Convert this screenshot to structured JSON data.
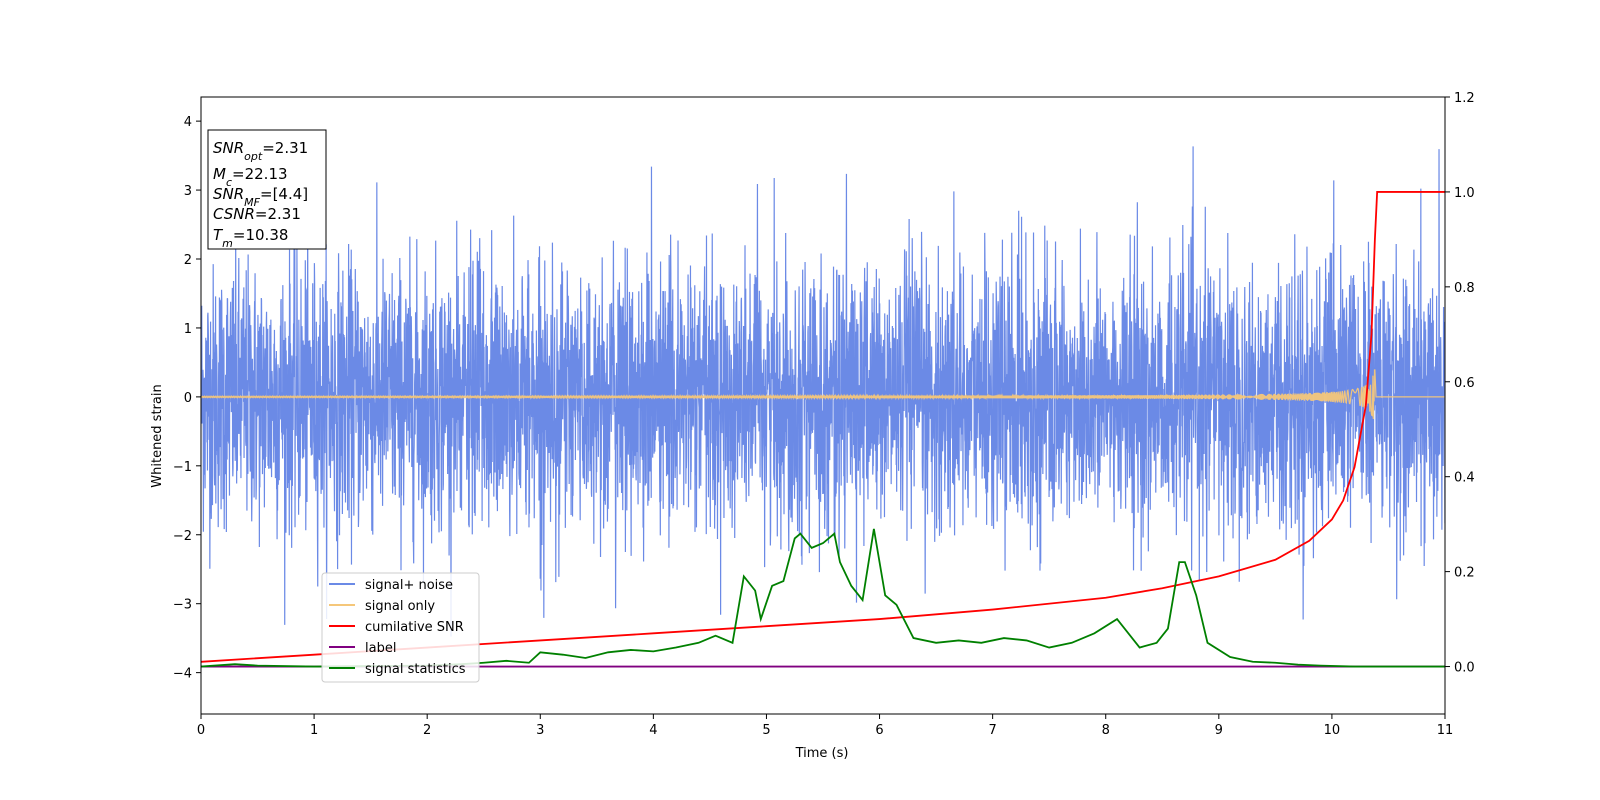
{
  "chart_data": {
    "type": "line",
    "xlabel": "Time (s)",
    "ylabel": "Whitened strain",
    "xlim": [
      0,
      11
    ],
    "ylim_left": [
      -4.6,
      4.35
    ],
    "ylim_right": [
      -0.1,
      1.2
    ],
    "x_ticks": [
      "0",
      "1",
      "2",
      "3",
      "4",
      "5",
      "6",
      "7",
      "8",
      "9",
      "10",
      "11"
    ],
    "y_ticks_left": [
      "−4",
      "−3",
      "−2",
      "−1",
      "0",
      "1",
      "2",
      "3",
      "4"
    ],
    "y_ticks_right": [
      "0.0",
      "0.2",
      "0.4",
      "0.6",
      "0.8",
      "1.0",
      "1.2"
    ],
    "grid": false,
    "legend_position": "bottom-left",
    "annotation": {
      "snr_opt": "=2.31",
      "mc": "=22.13",
      "snr_mf": "=[4.4]",
      "csnr": "=2.31",
      "tm": "=10.38"
    },
    "series": [
      {
        "name": "signal+ noise",
        "axis": "left",
        "color": "#6b8ae6",
        "description_stats": {
          "mean": 0,
          "std": 1.0,
          "min": -3.6,
          "max": 3.95
        }
      },
      {
        "name": "signal only",
        "axis": "left",
        "color": "#f5c77a",
        "merger_time": 10.38,
        "peak_amplitude": 0.45
      },
      {
        "name": "cumilative SNR",
        "axis": "right",
        "color": "#ff0000",
        "x": [
          0,
          1,
          2,
          3,
          4,
          5,
          6,
          7,
          8,
          8.5,
          9,
          9.5,
          9.8,
          10,
          10.1,
          10.2,
          10.3,
          10.35,
          10.38,
          10.4,
          11
        ],
        "values": [
          0.01,
          0.025,
          0.04,
          0.055,
          0.07,
          0.085,
          0.1,
          0.12,
          0.145,
          0.165,
          0.19,
          0.225,
          0.265,
          0.31,
          0.35,
          0.42,
          0.55,
          0.7,
          0.9,
          1.0,
          1.0
        ]
      },
      {
        "name": "label",
        "axis": "right",
        "color": "#800080",
        "x": [
          0,
          11
        ],
        "values": [
          0.0,
          0.0
        ]
      },
      {
        "name": "signal statistics",
        "axis": "right",
        "color": "#008000",
        "x": [
          0,
          0.3,
          0.5,
          1,
          1.5,
          2,
          2.3,
          2.5,
          2.7,
          2.9,
          3.0,
          3.2,
          3.4,
          3.6,
          3.8,
          4.0,
          4.2,
          4.4,
          4.55,
          4.7,
          4.8,
          4.9,
          4.95,
          5.05,
          5.15,
          5.25,
          5.3,
          5.4,
          5.5,
          5.6,
          5.65,
          5.75,
          5.85,
          5.95,
          6.05,
          6.15,
          6.3,
          6.5,
          6.7,
          6.9,
          7.1,
          7.3,
          7.5,
          7.7,
          7.9,
          8.1,
          8.3,
          8.45,
          8.55,
          8.65,
          8.7,
          8.8,
          8.9,
          9.1,
          9.3,
          9.5,
          9.7,
          9.9,
          10.2,
          10.5,
          11
        ],
        "values": [
          0.0,
          0.005,
          0.002,
          0.0,
          0.001,
          0.002,
          0.005,
          0.008,
          0.012,
          0.008,
          0.03,
          0.025,
          0.018,
          0.03,
          0.035,
          0.032,
          0.04,
          0.05,
          0.065,
          0.05,
          0.19,
          0.16,
          0.1,
          0.17,
          0.18,
          0.27,
          0.28,
          0.25,
          0.26,
          0.28,
          0.22,
          0.17,
          0.14,
          0.29,
          0.15,
          0.13,
          0.06,
          0.05,
          0.055,
          0.05,
          0.06,
          0.055,
          0.04,
          0.05,
          0.07,
          0.1,
          0.04,
          0.05,
          0.08,
          0.22,
          0.22,
          0.15,
          0.05,
          0.02,
          0.01,
          0.008,
          0.004,
          0.002,
          0.0,
          0.0,
          0.0
        ]
      }
    ]
  }
}
